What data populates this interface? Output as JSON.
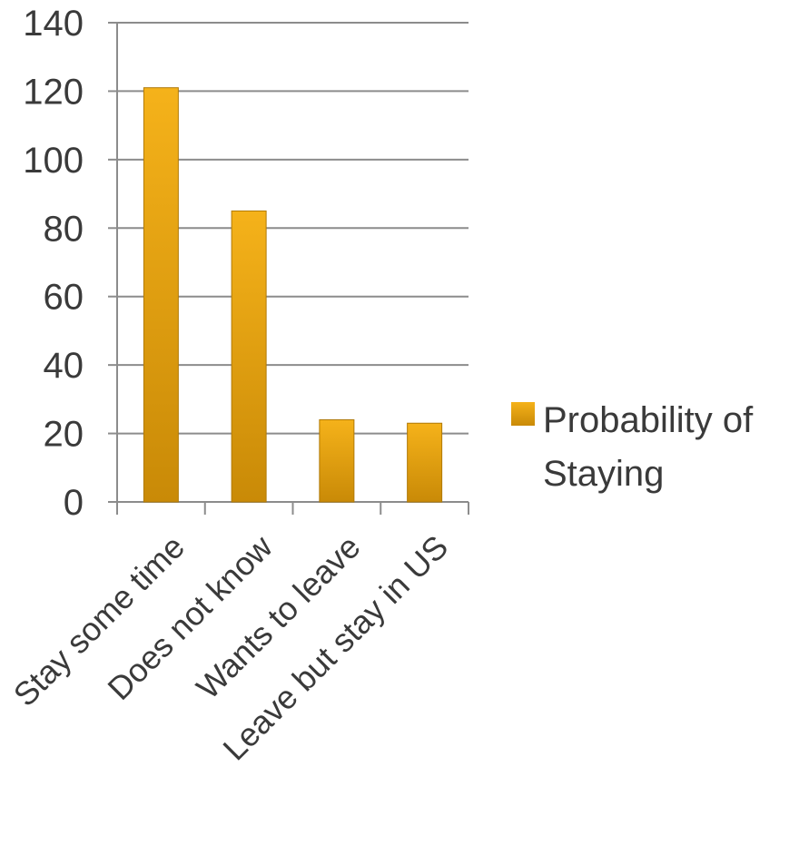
{
  "chart_data": {
    "type": "bar",
    "categories": [
      "Stay some time",
      "Does not know",
      "Wants to leave",
      "Leave but stay in US"
    ],
    "series": [
      {
        "name": "Probability of Staying",
        "values": [
          121,
          85,
          24,
          23
        ]
      }
    ],
    "ylim": [
      0,
      140
    ],
    "yticks": [
      0,
      20,
      40,
      60,
      80,
      100,
      120,
      140
    ],
    "grid": true,
    "legend": {
      "position": "right",
      "lines": [
        "Probability of",
        "Staying"
      ]
    },
    "colors": {
      "bar_top": "#f5b21a",
      "bar_bottom": "#c98a07",
      "bar_edge": "#b07a08",
      "gridline": "#8c8c8c",
      "axis": "#8c8c8c"
    }
  }
}
